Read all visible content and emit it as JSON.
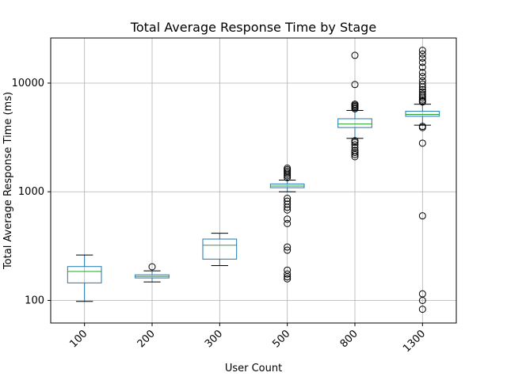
{
  "chart_data": {
    "type": "box",
    "title": "Total Average Response Time by Stage",
    "xlabel": "User Count",
    "ylabel": "Total Average Response Time (ms)",
    "yscale": "log",
    "ylim": [
      62,
      26000
    ],
    "yticks": [
      {
        "value": 100,
        "label": "100"
      },
      {
        "value": 1000,
        "label": "1000"
      },
      {
        "value": 10000,
        "label": "10000"
      }
    ],
    "grid": true,
    "colors": {
      "box": "#1f77b4",
      "median": "#2ca02c",
      "whisker": "#000000",
      "flier": "#000000",
      "grid": "#b0b0b0"
    },
    "categories": [
      "100",
      "200",
      "300",
      "500",
      "800",
      "1300"
    ],
    "boxes": [
      {
        "category": "100",
        "whisker_low": 98,
        "q1": 145,
        "median": 185,
        "q3": 205,
        "whisker_high": 262,
        "fliers": []
      },
      {
        "category": "200",
        "whisker_low": 148,
        "q1": 161,
        "median": 166,
        "q3": 172,
        "whisker_high": 187,
        "fliers": [
          204
        ]
      },
      {
        "category": "300",
        "whisker_low": 209,
        "q1": 240,
        "median": 322,
        "q3": 367,
        "whisker_high": 415,
        "fliers": []
      },
      {
        "category": "500",
        "whisker_low": 1000,
        "q1": 1090,
        "median": 1130,
        "q3": 1180,
        "whisker_high": 1280,
        "fliers": [
          1350,
          1400,
          1450,
          1500,
          1550,
          1600,
          1650,
          870,
          820,
          770,
          720,
          680,
          560,
          510,
          310,
          290,
          190,
          175,
          165,
          158
        ]
      },
      {
        "category": "800",
        "whisker_low": 3100,
        "q1": 3900,
        "median": 4200,
        "q3": 4700,
        "whisker_high": 5600,
        "fliers": [
          18000,
          9700,
          5800,
          5950,
          6100,
          6250,
          6400,
          2950,
          2850,
          2700,
          2550,
          2400,
          2300,
          2200,
          2100
        ]
      },
      {
        "category": "1300",
        "whisker_low": 4100,
        "q1": 4950,
        "median": 5150,
        "q3": 5500,
        "whisker_high": 6400,
        "fliers": [
          20000,
          18500,
          17000,
          15500,
          14000,
          12500,
          11500,
          10500,
          9800,
          9200,
          8700,
          8300,
          7900,
          7600,
          7300,
          7000,
          6800,
          6700,
          4000,
          3900,
          2800,
          600,
          115,
          100,
          83
        ]
      }
    ]
  }
}
